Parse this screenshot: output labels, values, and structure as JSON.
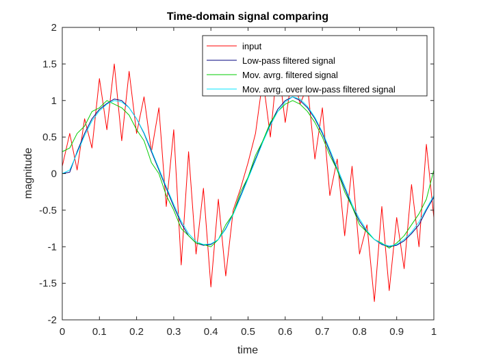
{
  "chart_data": {
    "type": "line",
    "title": "Time-domain signal comparing",
    "xlabel": "time",
    "ylabel": "magnitude",
    "xlim": [
      0,
      1
    ],
    "ylim": [
      -2,
      2
    ],
    "xticks": [
      0,
      0.1,
      0.2,
      0.3,
      0.4,
      0.5,
      0.6,
      0.7,
      0.8,
      0.9,
      1
    ],
    "xtick_labels": [
      "0",
      "0.1",
      "0.2",
      "0.3",
      "0.4",
      "0.5",
      "0.6",
      "0.7",
      "0.8",
      "0.9",
      "1"
    ],
    "yticks": [
      2,
      1.5,
      1,
      0.5,
      0,
      -0.5,
      -1,
      -1.5,
      -2
    ],
    "ytick_labels": [
      "2",
      "1.5",
      "1",
      "0.5",
      "0",
      "-0.5",
      "-1",
      "-1.5",
      "-2"
    ],
    "grid": false,
    "legend_position": "top-right",
    "x": [
      0,
      0.02,
      0.04,
      0.06,
      0.08,
      0.1,
      0.12,
      0.14,
      0.16,
      0.18,
      0.2,
      0.22,
      0.24,
      0.26,
      0.28,
      0.3,
      0.32,
      0.34,
      0.36,
      0.38,
      0.4,
      0.42,
      0.44,
      0.46,
      0.48,
      0.5,
      0.52,
      0.54,
      0.56,
      0.58,
      0.6,
      0.62,
      0.64,
      0.66,
      0.68,
      0.7,
      0.72,
      0.74,
      0.76,
      0.78,
      0.8,
      0.82,
      0.84,
      0.86,
      0.88,
      0.9,
      0.92,
      0.94,
      0.96,
      0.98,
      1
    ],
    "series": [
      {
        "name": "input",
        "color": "#ff0000",
        "values": [
          0.1,
          0.55,
          0.05,
          0.75,
          0.35,
          1.3,
          0.6,
          1.5,
          0.45,
          1.4,
          0.55,
          1.05,
          0.3,
          0.9,
          -0.45,
          0.6,
          -1.25,
          0.3,
          -1.1,
          -0.2,
          -1.55,
          -0.35,
          -1.4,
          -0.5,
          -0.2,
          0.15,
          0.55,
          1.3,
          0.5,
          1.55,
          0.7,
          1.4,
          0.95,
          1.2,
          0.2,
          0.9,
          -0.3,
          0.2,
          -0.85,
          0.1,
          -1.1,
          -0.7,
          -1.75,
          -0.45,
          -1.6,
          -0.6,
          -1.3,
          -0.15,
          -1.0,
          0.4,
          -0.6
        ]
      },
      {
        "name": "Low-pass filtered signal",
        "color": "#00007f",
        "values": [
          0.0,
          0.02,
          0.3,
          0.55,
          0.75,
          0.88,
          0.96,
          1.02,
          1.0,
          0.9,
          0.75,
          0.55,
          0.3,
          0.05,
          -0.2,
          -0.45,
          -0.68,
          -0.85,
          -0.95,
          -0.98,
          -0.97,
          -0.9,
          -0.75,
          -0.55,
          -0.3,
          -0.05,
          0.2,
          0.45,
          0.68,
          0.88,
          1.0,
          1.05,
          1.0,
          0.9,
          0.75,
          0.55,
          0.3,
          0.05,
          -0.2,
          -0.45,
          -0.65,
          -0.8,
          -0.9,
          -0.97,
          -1.0,
          -0.98,
          -0.92,
          -0.82,
          -0.7,
          -0.5,
          -0.32
        ]
      },
      {
        "name": "Mov. avrg. filtered signal",
        "color": "#00cc00",
        "values": [
          0.3,
          0.35,
          0.55,
          0.65,
          0.85,
          0.9,
          1.0,
          0.95,
          0.9,
          0.8,
          0.6,
          0.45,
          0.15,
          0.0,
          -0.3,
          -0.5,
          -0.75,
          -0.85,
          -0.95,
          -0.97,
          -1.0,
          -0.9,
          -0.7,
          -0.55,
          -0.25,
          -0.05,
          0.25,
          0.45,
          0.7,
          0.85,
          0.95,
          1.0,
          0.95,
          0.85,
          0.7,
          0.5,
          0.25,
          0.05,
          -0.25,
          -0.45,
          -0.7,
          -0.8,
          -0.9,
          -0.95,
          -1.02,
          -0.95,
          -0.85,
          -0.7,
          -0.55,
          -0.35,
          0.05
        ]
      },
      {
        "name": "Mov. avrg. over low-pass filtered signal",
        "color": "#00e6ff",
        "values": [
          0.0,
          0.05,
          0.28,
          0.52,
          0.72,
          0.86,
          0.95,
          1.0,
          0.98,
          0.9,
          0.75,
          0.56,
          0.32,
          0.07,
          -0.18,
          -0.42,
          -0.65,
          -0.82,
          -0.93,
          -0.97,
          -0.96,
          -0.9,
          -0.76,
          -0.56,
          -0.32,
          -0.07,
          0.18,
          0.43,
          0.66,
          0.85,
          0.98,
          1.05,
          1.02,
          0.92,
          0.77,
          0.57,
          0.33,
          0.08,
          -0.17,
          -0.42,
          -0.62,
          -0.78,
          -0.9,
          -0.96,
          -0.99,
          -0.97,
          -0.9,
          -0.8,
          -0.66,
          -0.48,
          -0.3
        ]
      }
    ]
  }
}
